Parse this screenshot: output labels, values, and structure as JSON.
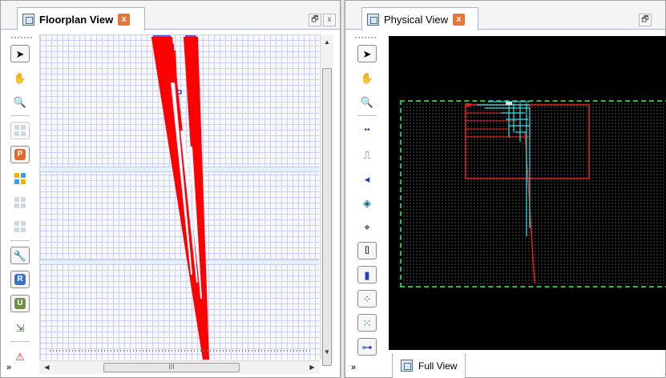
{
  "left_pane": {
    "tab_title": "Floorplan View",
    "tab_close": "x",
    "restore_label": "🗗",
    "close_label": "x",
    "toolbar": {
      "buttons": [
        {
          "name": "select-tool",
          "glyph": "➤"
        },
        {
          "name": "pan-tool",
          "glyph": "✋"
        },
        {
          "name": "zoom-tool",
          "glyph": "🔍"
        },
        {
          "name": "grid-tool",
          "glyph": ""
        },
        {
          "name": "p-tool",
          "glyph": "P"
        },
        {
          "name": "color-grid-tool",
          "glyph": ""
        },
        {
          "name": "gray-grid-tool",
          "glyph": ""
        },
        {
          "name": "gray-grid-tool-2",
          "glyph": ""
        },
        {
          "name": "wrench-tool",
          "glyph": "🔧"
        },
        {
          "name": "r-tool",
          "glyph": "R"
        },
        {
          "name": "u-tool",
          "glyph": "U"
        },
        {
          "name": "route-tool",
          "glyph": "⇲"
        },
        {
          "name": "warning-tool",
          "glyph": "⚠"
        }
      ],
      "more": "»"
    },
    "hscroll_thumb_label": "III",
    "colors": {
      "net": "#ff0000",
      "cell": "#1a2bd6",
      "grid": "#c9cff6"
    }
  },
  "right_pane": {
    "tab_title": "Physical View",
    "tab_close": "x",
    "restore_label": "🗗",
    "toolbar": {
      "buttons": [
        {
          "name": "select-tool",
          "glyph": "➤"
        },
        {
          "name": "pan-tool",
          "glyph": "✋"
        },
        {
          "name": "zoom-tool",
          "glyph": "🔍"
        },
        {
          "name": "dots-tool",
          "glyph": "••"
        },
        {
          "name": "ruler-tool",
          "glyph": "⎍"
        },
        {
          "name": "arrow-tool",
          "glyph": "◂"
        },
        {
          "name": "target-tool",
          "glyph": "◈"
        },
        {
          "name": "crosshair-tool",
          "glyph": "⌖"
        },
        {
          "name": "bracket-tool",
          "glyph": "[]"
        },
        {
          "name": "block-tool",
          "glyph": "▮"
        },
        {
          "name": "dot-grid-tool",
          "glyph": "⁘"
        },
        {
          "name": "scatter-tool",
          "glyph": "⁙"
        },
        {
          "name": "tree-tool",
          "glyph": "⊶"
        }
      ],
      "more": "»"
    },
    "bottom_tab": "Full View",
    "colors": {
      "outline": "#23c23a",
      "region": "#e02020",
      "route": "#38d8e0",
      "background": "#000000"
    }
  }
}
